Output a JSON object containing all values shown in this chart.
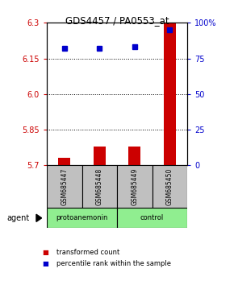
{
  "title": "GDS4457 / PA0553_at",
  "samples": [
    "GSM685447",
    "GSM685448",
    "GSM685449",
    "GSM685450"
  ],
  "bar_values": [
    5.73,
    5.78,
    5.78,
    6.3
  ],
  "bar_baseline": 5.7,
  "percentile_values": [
    82,
    82,
    83,
    95
  ],
  "bar_color": "#CC0000",
  "dot_color": "#0000CC",
  "ylim_left": [
    5.7,
    6.3
  ],
  "ylim_right": [
    0,
    100
  ],
  "yticks_left": [
    5.7,
    5.85,
    6.0,
    6.15,
    6.3
  ],
  "yticks_right": [
    0,
    25,
    50,
    75,
    100
  ],
  "ytick_right_labels": [
    "0",
    "25",
    "50",
    "75",
    "100%"
  ],
  "grid_values": [
    5.85,
    6.0,
    6.15
  ],
  "group1_label": "protoanemonin",
  "group1_indices": [
    0,
    1
  ],
  "group2_label": "control",
  "group2_indices": [
    2,
    3
  ],
  "agent_label": "agent",
  "legend_red": "transformed count",
  "legend_blue": "percentile rank within the sample",
  "left_tick_color": "#CC0000",
  "right_tick_color": "#0000CC",
  "background_color": "#ffffff",
  "sample_box_color": "#c0c0c0",
  "group_color": "#90EE90"
}
